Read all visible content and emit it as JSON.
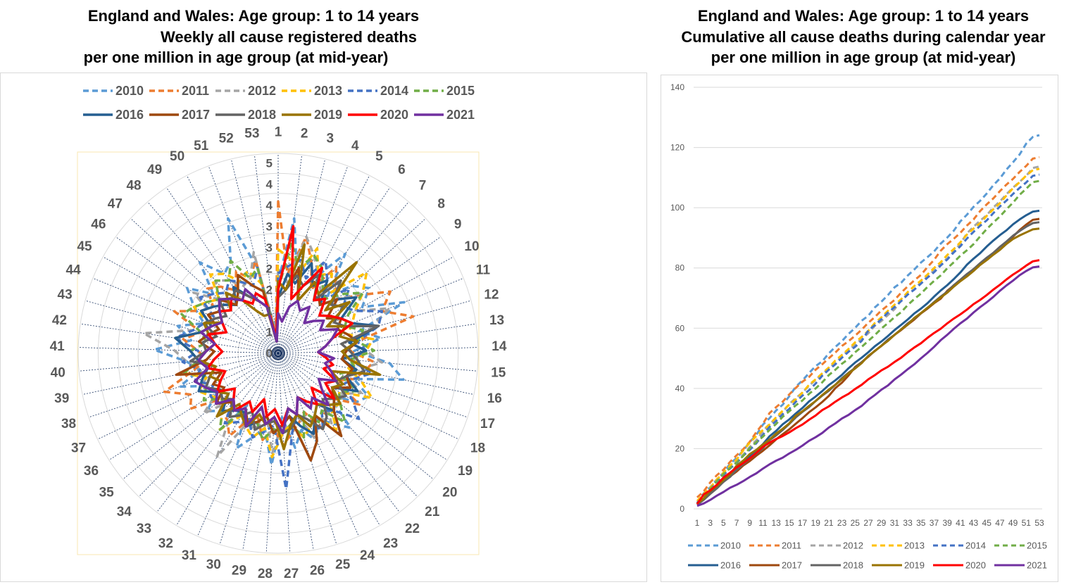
{
  "chart_data": [
    {
      "type": "radar",
      "title_lines": [
        "England and Wales: Age group:   1 to 14 years",
        "Weekly all cause registered deaths",
        "per one million in age group (at mid-year)"
      ],
      "categories": [
        "1",
        "2",
        "3",
        "4",
        "5",
        "6",
        "7",
        "8",
        "9",
        "10",
        "11",
        "12",
        "13",
        "14",
        "15",
        "16",
        "17",
        "18",
        "19",
        "20",
        "21",
        "22",
        "23",
        "24",
        "25",
        "26",
        "27",
        "28",
        "29",
        "30",
        "31",
        "32",
        "33",
        "34",
        "35",
        "36",
        "37",
        "38",
        "39",
        "40",
        "41",
        "42",
        "43",
        "44",
        "45",
        "46",
        "47",
        "48",
        "49",
        "50",
        "51",
        "52",
        "53"
      ],
      "radial_ticks": [
        "0",
        "1",
        "1",
        "2",
        "2",
        "3",
        "3",
        "4",
        "4",
        "5"
      ],
      "rlim": [
        0,
        5
      ],
      "grid": true,
      "legend_position": "top"
    },
    {
      "type": "line",
      "cumulative_of_weekly_series": true,
      "title_lines": [
        "England and Wales: Age group: 1 to 14 years",
        "Cumulative all cause deaths during calendar year",
        "per one million in age group (at mid-year)"
      ],
      "x_ticks": [
        "1",
        "3",
        "5",
        "7",
        "9",
        "11",
        "13",
        "15",
        "17",
        "19",
        "21",
        "23",
        "25",
        "27",
        "29",
        "31",
        "33",
        "35",
        "37",
        "39",
        "41",
        "43",
        "45",
        "47",
        "49",
        "51",
        "53"
      ],
      "y_ticks": [
        "0",
        "20",
        "40",
        "60",
        "80",
        "100",
        "120",
        "140"
      ],
      "ylim": [
        0,
        140
      ],
      "grid": true,
      "legend_position": "bottom"
    }
  ],
  "series": [
    {
      "name": "2010",
      "color": "#5B9BD5",
      "dashed": true,
      "weekly": [
        1.8,
        3.4,
        2.0,
        2.6,
        2.2,
        3.0,
        1.9,
        2.5,
        2.8,
        2.4,
        3.4,
        2.1,
        2.6,
        1.9,
        2.8,
        3.2,
        2.0,
        2.5,
        2.3,
        1.6,
        2.6,
        2.2,
        1.9,
        2.4,
        2.0,
        2.4,
        1.6,
        2.8,
        1.9,
        2.2,
        2.6,
        1.5,
        2.4,
        2.0,
        2.3,
        1.8,
        1.9,
        2.6,
        2.0,
        2.3,
        3.1,
        2.2,
        2.6,
        2.0,
        2.4,
        2.8,
        2.2,
        3.0,
        2.4,
        2.6,
        3.6,
        2.2,
        0.6
      ]
    },
    {
      "name": "2011",
      "color": "#ED7D31",
      "dashed": true,
      "weekly": [
        3.8,
        2.0,
        3.0,
        2.4,
        1.8,
        2.6,
        2.2,
        2.0,
        2.5,
        3.2,
        2.8,
        3.5,
        2.0,
        1.8,
        2.4,
        2.2,
        2.0,
        1.6,
        2.4,
        1.8,
        2.0,
        1.9,
        2.2,
        1.6,
        1.8,
        2.0,
        2.3,
        1.9,
        2.2,
        1.7,
        1.8,
        2.4,
        2.1,
        2.0,
        1.8,
        2.6,
        2.4,
        3.0,
        2.2,
        1.8,
        2.0,
        2.4,
        2.0,
        2.8,
        2.2,
        2.0,
        2.4,
        2.2,
        1.9,
        2.3,
        2.0,
        2.4,
        0.5
      ]
    },
    {
      "name": "2012",
      "color": "#A5A5A5",
      "dashed": true,
      "weekly": [
        2.1,
        1.8,
        3.0,
        2.6,
        2.2,
        1.9,
        2.4,
        2.0,
        2.6,
        2.2,
        3.0,
        2.4,
        1.8,
        2.2,
        2.6,
        2.0,
        1.8,
        2.3,
        1.9,
        2.0,
        1.7,
        2.2,
        1.8,
        2.4,
        1.6,
        2.0,
        1.8,
        2.5,
        1.6,
        2.0,
        1.9,
        3.0,
        2.0,
        1.6,
        2.4,
        1.8,
        2.2,
        1.9,
        2.0,
        2.3,
        2.6,
        3.4,
        2.2,
        2.0,
        1.8,
        2.6,
        2.0,
        2.4,
        2.2,
        1.9,
        2.0,
        2.6,
        0.5
      ]
    },
    {
      "name": "2013",
      "color": "#FFC000",
      "dashed": true,
      "weekly": [
        2.6,
        2.4,
        2.0,
        2.8,
        2.2,
        2.4,
        2.0,
        3.0,
        2.6,
        2.2,
        2.0,
        1.8,
        2.4,
        2.2,
        2.0,
        1.8,
        2.2,
        2.6,
        1.8,
        2.0,
        1.9,
        2.4,
        1.8,
        2.0,
        2.2,
        1.8,
        2.0,
        2.6,
        1.9,
        2.2,
        2.0,
        1.8,
        2.4,
        2.0,
        1.8,
        2.0,
        2.2,
        1.9,
        2.4,
        2.0,
        2.2,
        2.6,
        2.0,
        1.8,
        2.4,
        2.2,
        2.0,
        2.6,
        2.4,
        2.0,
        2.2,
        1.8,
        0.4
      ]
    },
    {
      "name": "2014",
      "color": "#4472C4",
      "dashed": true,
      "weekly": [
        2.0,
        2.2,
        2.4,
        2.0,
        2.6,
        2.2,
        1.8,
        2.4,
        2.0,
        2.2,
        2.8,
        2.6,
        2.0,
        2.2,
        1.8,
        2.4,
        2.0,
        1.8,
        2.2,
        2.6,
        2.0,
        1.8,
        2.2,
        2.0,
        1.6,
        2.0,
        3.4,
        1.8,
        2.0,
        2.2,
        1.8,
        2.0,
        2.2,
        1.6,
        2.0,
        2.0,
        1.8,
        2.2,
        2.0,
        2.4,
        2.0,
        2.6,
        2.2,
        2.0,
        1.8,
        2.4,
        2.2,
        2.0,
        2.2,
        2.0,
        1.8,
        2.2,
        0.4
      ]
    },
    {
      "name": "2015",
      "color": "#70AD47",
      "dashed": true,
      "weekly": [
        1.6,
        2.8,
        2.2,
        2.6,
        2.4,
        2.0,
        1.8,
        2.2,
        2.6,
        2.0,
        1.8,
        2.2,
        2.0,
        2.4,
        1.8,
        2.0,
        1.6,
        2.2,
        1.8,
        2.0,
        2.4,
        1.8,
        2.0,
        1.6,
        2.2,
        1.8,
        2.0,
        1.9,
        2.2,
        1.8,
        2.0,
        1.6,
        2.4,
        2.0,
        1.8,
        2.2,
        2.0,
        1.8,
        2.4,
        2.0,
        2.2,
        1.8,
        2.0,
        2.6,
        2.4,
        2.2,
        2.0,
        2.4,
        2.2,
        2.6,
        2.0,
        2.2,
        0.4
      ]
    },
    {
      "name": "2016",
      "color": "#255E91",
      "dashed": false,
      "weekly": [
        1.4,
        2.0,
        1.8,
        2.4,
        1.9,
        2.2,
        1.6,
        2.0,
        2.4,
        1.8,
        2.0,
        2.6,
        1.8,
        2.2,
        1.6,
        2.0,
        1.8,
        2.2,
        1.6,
        1.8,
        2.0,
        1.6,
        1.8,
        2.2,
        1.9,
        1.6,
        1.8,
        2.0,
        1.6,
        1.8,
        2.0,
        1.7,
        1.8,
        2.0,
        1.6,
        1.8,
        2.2,
        2.0,
        1.8,
        2.0,
        2.2,
        2.6,
        2.0,
        1.8,
        2.2,
        2.0,
        1.8,
        1.6,
        2.0,
        1.6,
        1.4,
        1.2,
        0.3
      ]
    },
    {
      "name": "2017",
      "color": "#9E480E",
      "dashed": false,
      "weekly": [
        1.8,
        1.6,
        2.2,
        1.4,
        2.0,
        1.8,
        1.6,
        2.0,
        1.5,
        1.8,
        1.6,
        1.8,
        2.0,
        1.7,
        1.6,
        1.9,
        1.8,
        2.0,
        1.6,
        1.8,
        2.0,
        2.6,
        1.8,
        2.4,
        2.8,
        1.6,
        1.8,
        2.0,
        1.6,
        1.8,
        1.9,
        1.6,
        1.8,
        1.7,
        2.0,
        1.6,
        1.8,
        1.5,
        2.6,
        1.8,
        1.6,
        2.0,
        1.8,
        1.6,
        2.0,
        1.8,
        2.0,
        1.6,
        1.8,
        2.2,
        1.8,
        1.6,
        0.3
      ]
    },
    {
      "name": "2018",
      "color": "#636363",
      "dashed": false,
      "weekly": [
        1.4,
        1.6,
        2.0,
        1.8,
        2.2,
        1.6,
        2.4,
        1.8,
        2.0,
        1.6,
        1.8,
        2.6,
        1.6,
        1.8,
        2.0,
        2.2,
        1.8,
        1.6,
        2.0,
        1.8,
        1.6,
        2.0,
        2.2,
        1.8,
        1.6,
        1.9,
        2.0,
        1.7,
        1.8,
        2.0,
        1.6,
        1.8,
        2.0,
        1.6,
        1.8,
        1.7,
        2.0,
        1.8,
        1.6,
        2.2,
        1.8,
        1.9,
        1.6,
        2.0,
        1.8,
        1.6,
        2.0,
        1.8,
        1.9,
        1.6,
        1.4,
        1.2,
        0.3
      ]
    },
    {
      "name": "2019",
      "color": "#997300",
      "dashed": false,
      "weekly": [
        1.8,
        1.6,
        2.8,
        1.4,
        2.0,
        1.8,
        3.0,
        1.6,
        2.2,
        1.4,
        1.8,
        1.6,
        2.0,
        1.6,
        1.8,
        2.6,
        1.4,
        1.8,
        1.6,
        2.0,
        1.8,
        1.6,
        1.8,
        2.0,
        1.6,
        1.8,
        2.4,
        1.6,
        1.8,
        1.6,
        2.0,
        1.8,
        1.6,
        2.2,
        1.6,
        1.8,
        1.6,
        1.8,
        1.6,
        2.0,
        1.8,
        1.6,
        1.8,
        2.0,
        1.6,
        1.8,
        1.6,
        2.0,
        1.6,
        1.2,
        1.0,
        1.0,
        0.3
      ]
    },
    {
      "name": "2020",
      "color": "#FF0000",
      "dashed": false,
      "weekly": [
        1.6,
        3.2,
        1.4,
        1.8,
        2.4,
        1.6,
        1.8,
        1.4,
        1.6,
        1.8,
        2.0,
        1.4,
        1.2,
        1.0,
        1.2,
        1.4,
        1.2,
        1.6,
        1.4,
        1.8,
        1.2,
        1.6,
        1.4,
        1.2,
        1.6,
        1.4,
        1.8,
        1.4,
        1.6,
        1.2,
        1.6,
        1.4,
        1.8,
        1.6,
        1.4,
        1.8,
        1.6,
        1.4,
        1.8,
        1.6,
        1.4,
        1.6,
        1.8,
        1.4,
        1.6,
        1.8,
        1.6,
        1.8,
        1.6,
        1.4,
        1.6,
        1.4,
        0.4
      ]
    },
    {
      "name": "2021",
      "color": "#7030A0",
      "dashed": false,
      "weekly": [
        1.0,
        0.8,
        1.2,
        1.4,
        1.2,
        1.4,
        1.0,
        1.2,
        1.4,
        1.2,
        1.6,
        1.4,
        1.2,
        1.0,
        1.4,
        1.2,
        1.4,
        1.6,
        1.2,
        1.4,
        1.8,
        1.4,
        1.6,
        1.2,
        1.6,
        1.4,
        2.0,
        1.6,
        1.8,
        1.4,
        2.0,
        1.6,
        1.8,
        1.6,
        2.0,
        1.8,
        2.0,
        2.2,
        1.8,
        2.0,
        1.8,
        1.6,
        2.0,
        1.8,
        1.6,
        1.8,
        2.0,
        1.8,
        1.6,
        1.8,
        1.4,
        1.2,
        0.3
      ]
    }
  ]
}
